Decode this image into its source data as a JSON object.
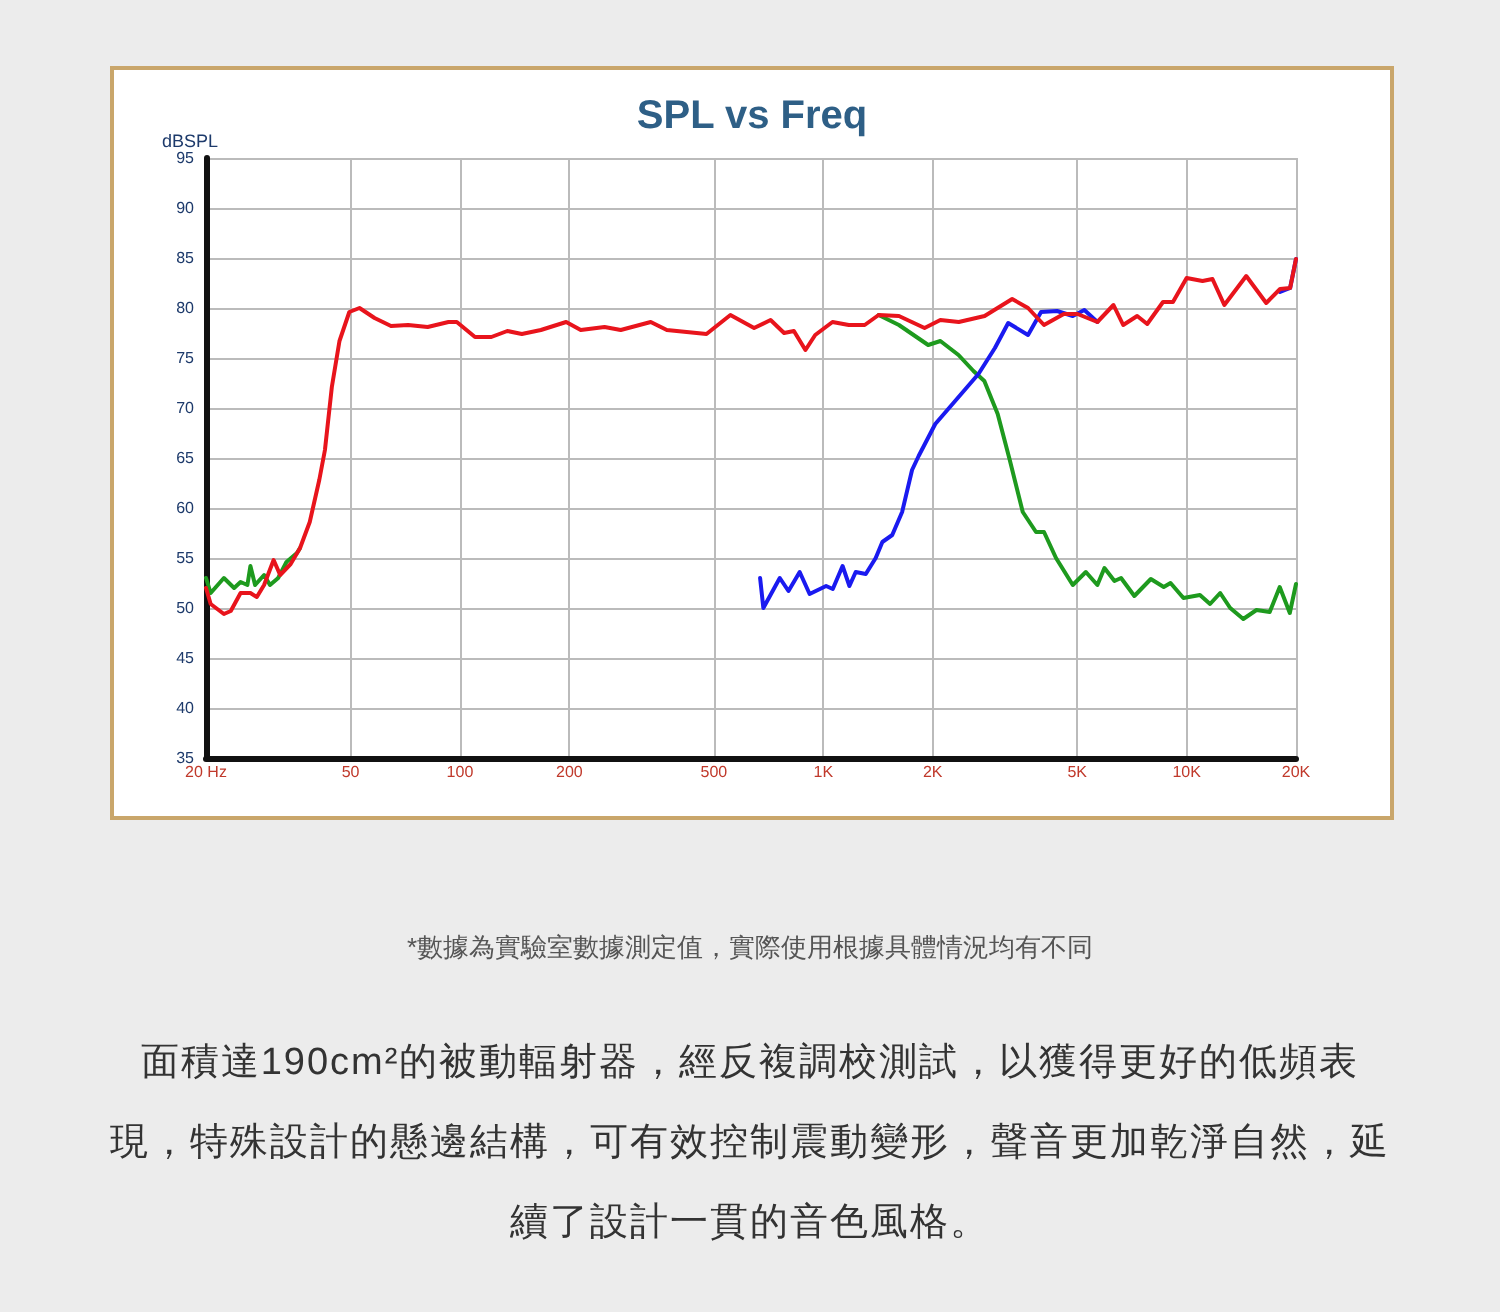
{
  "chart_data": {
    "type": "line",
    "title": "SPL vs Freq",
    "ylabel": "dBSPL",
    "annotations": [
      "*數據為實驗室數據測定值，實際使用根據具體情況均有不同",
      "面積達190cm²的被動輻射器，經反複調校測試，以獲得更好的低頻表現，特殊設計的懸邊結構，可有效控制震動變形，聲音更加乾淨自然，延續了設計一貫的音色風格。"
    ],
    "log": "x",
    "grid": true,
    "marker": "none",
    "line_style": "solid",
    "xlim": [
      20,
      20000
    ],
    "xticks": [
      {
        "value": 20,
        "label": "20 Hz"
      },
      50,
      100,
      200,
      500,
      {
        "value": 1000,
        "label": "1K"
      },
      {
        "value": 2000,
        "label": "2K"
      },
      {
        "value": 5000,
        "label": "5K"
      },
      {
        "value": 10000,
        "label": "10K"
      },
      {
        "value": 20000,
        "label": "20K"
      }
    ],
    "ylim": [
      35,
      95
    ],
    "yticks": [
      35,
      40,
      45,
      50,
      55,
      60,
      65,
      70,
      75,
      80,
      85,
      90,
      95
    ],
    "series": [
      {
        "color": "#1e9a1e",
        "x": [
          20,
          20.6,
          22.4,
          23.9,
          24.9,
          26,
          26.5,
          27.3,
          28.9,
          30,
          31.6,
          33.3,
          35.6,
          36.3,
          38.6,
          41,
          42.5,
          44.4,
          46.6,
          49.6,
          52.9,
          58.2,
          64.6,
          72,
          81.5,
          93,
          98,
          110,
          122,
          135,
          148,
          167,
          196,
          215,
          250,
          277,
          335,
          371,
          477,
          555,
          645,
          716,
          780,
          830,
          893,
          950,
          1060,
          1175,
          1300,
          1420,
          1615,
          1944,
          2100,
          2356,
          2590,
          2775,
          3020,
          3260,
          3540,
          3850,
          4050,
          4370,
          4860,
          5280,
          5680,
          5940,
          6330,
          6600,
          7180,
          7970,
          8650,
          9030,
          9800,
          10880,
          11600,
          12370,
          13180,
          14320,
          15570,
          16930,
          18040,
          19230,
          20000
        ],
        "values": [
          53,
          51.5,
          53,
          52,
          52.6,
          52.3,
          54.2,
          52.3,
          53.3,
          52.3,
          53,
          54.6,
          55.5,
          56,
          null,
          null,
          null,
          null,
          null,
          null,
          null,
          null,
          null,
          null,
          null,
          null,
          null,
          null,
          null,
          null,
          null,
          null,
          null,
          null,
          null,
          null,
          null,
          null,
          null,
          null,
          null,
          null,
          null,
          null,
          null,
          null,
          null,
          null,
          null,
          79.3,
          78.3,
          76.3,
          76.7,
          75.3,
          73.7,
          72.7,
          69.4,
          64.8,
          59.6,
          57.6,
          57.6,
          55,
          52.3,
          53.6,
          52.3,
          54,
          52.7,
          53,
          51.2,
          52.9,
          52.1,
          52.5,
          51,
          51.3,
          50.4,
          51.5,
          50,
          48.9,
          49.8,
          49.6,
          52.1,
          49.5,
          52.4
        ]
      },
      {
        "color": "#1a1af0",
        "x": [
          670,
          684,
          759,
          802,
          861,
          917,
          1018,
          1062,
          1130,
          1180,
          1228,
          1309,
          1394,
          1454,
          1548,
          1648,
          1755,
          1830,
          2033,
          2306,
          2673,
          2967,
          3228,
          3660,
          3975,
          4400,
          4860,
          5230,
          5680,
          6290,
          6690,
          7310,
          7790,
          8610,
          9170,
          10000,
          11060,
          11780,
          12700,
          14590,
          16560,
          18080,
          19270,
          20000
        ],
        "values": [
          53,
          50,
          53,
          51.7,
          53.6,
          51.4,
          52.2,
          51.9,
          54.2,
          52.2,
          53.6,
          53.4,
          55,
          56.6,
          57.3,
          59.6,
          63.8,
          65.2,
          68.4,
          70.7,
          73.4,
          76,
          78.5,
          77.3,
          79.6,
          79.7,
          79.2,
          79.8,
          78.6,
          null,
          null,
          null,
          null,
          null,
          null,
          null,
          null,
          null,
          null,
          null,
          null,
          81.6,
          82,
          84.9
        ]
      },
      {
        "color": "#e8141c",
        "x": [
          20,
          20.6,
          22.4,
          23.4,
          24.9,
          26.5,
          27.6,
          28.9,
          30.7,
          32,
          34.2,
          36.3,
          38.6,
          41,
          42.5,
          44.4,
          46.6,
          49.6,
          52.9,
          58.2,
          64.6,
          72,
          81.5,
          93,
          98,
          110,
          122,
          135,
          148,
          167,
          196,
          215,
          250,
          277,
          335,
          371,
          477,
          555,
          645,
          716,
          780,
          830,
          893,
          950,
          1060,
          1175,
          1300,
          1420,
          1615,
          1900,
          2100,
          2360,
          2780,
          3310,
          3660,
          4050,
          4590,
          5010,
          5680,
          6290,
          6690,
          7310,
          7790,
          8610,
          9170,
          10000,
          11060,
          11780,
          12700,
          14590,
          16560,
          18080,
          19270,
          20000
        ],
        "values": [
          52,
          50.4,
          49.4,
          49.7,
          51.5,
          51.5,
          51.1,
          52.3,
          54.8,
          53.3,
          54.4,
          56,
          58.6,
          62.8,
          65.8,
          72.1,
          76.7,
          79.6,
          80,
          79,
          78.2,
          78.3,
          78.1,
          78.6,
          78.6,
          77.1,
          77.1,
          77.7,
          77.4,
          77.8,
          78.6,
          77.8,
          78.1,
          77.8,
          78.6,
          77.8,
          77.4,
          79.3,
          78,
          78.8,
          77.5,
          77.7,
          75.8,
          77.3,
          78.6,
          78.3,
          78.3,
          79.3,
          79.2,
          78,
          78.8,
          78.6,
          79.2,
          80.9,
          80,
          78.3,
          79.4,
          79.4,
          78.6,
          80.3,
          78.3,
          79.2,
          78.4,
          80.6,
          80.6,
          83,
          82.7,
          82.9,
          80.3,
          83.2,
          80.5,
          81.9,
          82,
          84.9
        ]
      }
    ]
  }
}
